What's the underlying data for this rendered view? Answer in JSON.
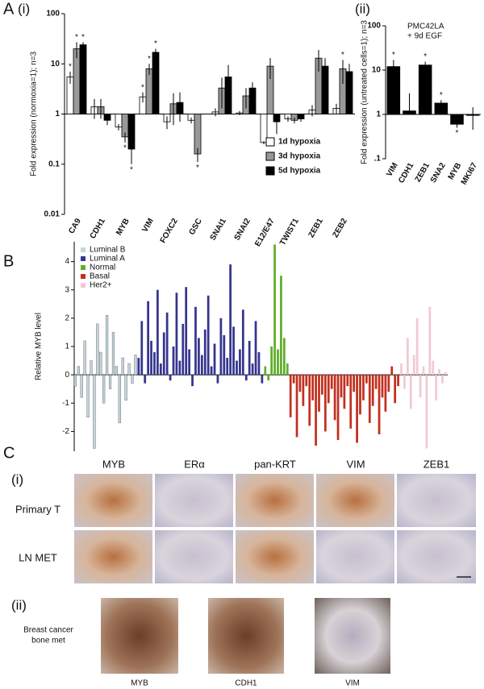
{
  "chart_data": [
    {
      "type": "bar",
      "panel_label": "A",
      "sub_label": "(i)",
      "log_scale": true,
      "ylabel": "Fold expression (normoxia=1); n=3",
      "categories": [
        "CA9",
        "CDH1",
        "MYB",
        "VIM",
        "FOXC2",
        "GSC",
        "SNAI1",
        "SNAI2",
        "E12/E47",
        "TWIST1",
        "ZEB1",
        "ZEB2"
      ],
      "series": [
        {
          "name": "1d hypoxia",
          "color": "#ffffff",
          "values": [
            5.5,
            1.4,
            0.55,
            2.2,
            0.7,
            0.75,
            1.1,
            1.05,
            0.27,
            0.8,
            1.2,
            1.3
          ],
          "errors": [
            1.5,
            0.6,
            0.08,
            0.5,
            0.2,
            0.1,
            0.2,
            0.1,
            0.02,
            0.1,
            0.3,
            0.3
          ],
          "marks": [
            "*",
            null,
            null,
            "*",
            null,
            null,
            null,
            null,
            null,
            null,
            null,
            null
          ]
        },
        {
          "name": "3d hypoxia",
          "color": "#999999",
          "values": [
            20,
            1.4,
            0.35,
            8,
            1.6,
            0.16,
            3.3,
            2.3,
            9,
            0.75,
            13,
            8
          ],
          "errors": [
            7,
            0.6,
            0.08,
            2,
            1,
            0.05,
            2,
            1,
            4,
            0.1,
            6,
            4
          ],
          "marks": [
            "*",
            null,
            "*",
            "*",
            null,
            "*",
            null,
            null,
            null,
            null,
            null,
            "*"
          ]
        },
        {
          "name": "5d hypoxia",
          "color": "#000000",
          "values": [
            24,
            0.75,
            0.2,
            17,
            1.7,
            null,
            5.5,
            3.3,
            0.7,
            0.8,
            9,
            7
          ],
          "errors": [
            3,
            0.15,
            0.1,
            3,
            1,
            null,
            4,
            1,
            0.3,
            0.1,
            4,
            3
          ],
          "marks": [
            "*",
            null,
            "*",
            "*",
            null,
            null,
            null,
            null,
            null,
            null,
            null,
            null
          ]
        }
      ],
      "ylim": [
        0.01,
        100
      ],
      "yticks": [
        0.01,
        0.1,
        1,
        10,
        100
      ],
      "legend": "lower right"
    },
    {
      "type": "bar",
      "sub_label": "(ii)",
      "log_scale": true,
      "ylabel": "Fold expression (untreated cells=1); n=3",
      "annotation": [
        "PMC42LA",
        "+ 9d EGF"
      ],
      "categories": [
        "VIM",
        "CDH1",
        "ZEB1",
        "SNA2",
        "MYB",
        "MKI67"
      ],
      "series": [
        {
          "color": "#000000",
          "values": [
            12,
            1.2,
            13,
            1.8,
            0.6,
            0.95
          ],
          "errors": [
            5,
            1.8,
            2.5,
            0.3,
            0.1,
            0.5
          ],
          "marks": [
            "*",
            null,
            "*",
            "*",
            "*",
            null
          ]
        }
      ],
      "ylim": [
        0.1,
        100
      ],
      "yticks": [
        {
          "value": 0.1,
          "label": ".1"
        },
        1,
        10,
        100
      ]
    },
    {
      "type": "bar",
      "panel_label": "B",
      "ylabel": "Relative MYB level",
      "series": [
        {
          "name": "Luminal B",
          "color": "#c3d6d6",
          "values": [
            -0.4,
            0.3,
            -0.8,
            1.2,
            -1.5,
            0.5,
            -2.6,
            1.8,
            0.8,
            -1.0,
            2.1,
            -0.5,
            1.5,
            0.3,
            -1.7,
            0.6,
            -0.9,
            0.4,
            -0.3,
            0.7
          ]
        },
        {
          "name": "Luminal A",
          "color": "#35358f",
          "values": [
            0.6,
            1.9,
            -0.3,
            2.6,
            1.2,
            0.8,
            3.0,
            0.4,
            1.5,
            2.2,
            -0.2,
            1.0,
            2.9,
            0.5,
            1.8,
            3.1,
            0.9,
            -0.4,
            2.4,
            1.3,
            0.7,
            1.6,
            2.8,
            0.3,
            1.1,
            -0.3,
            2.0,
            1.4,
            0.6,
            3.9,
            1.7,
            0.5,
            0.9,
            2.3,
            -0.2,
            1.2,
            0.4,
            1.9,
            0.8,
            -0.3
          ]
        },
        {
          "name": "Normal",
          "color": "#5fae2a",
          "values": [
            0.3,
            -0.2,
            1.0,
            4.6,
            0.9,
            3.5,
            1.3,
            0.4
          ]
        },
        {
          "name": "Basal",
          "color": "#c2301f",
          "values": [
            -1.5,
            -0.3,
            -2.2,
            -0.6,
            -1.1,
            -0.4,
            -1.8,
            -0.9,
            -2.5,
            -1.3,
            -0.7,
            -2.0,
            -1.0,
            -0.5,
            -1.6,
            -2.3,
            -0.8,
            -1.2,
            -0.4,
            -1.9,
            -0.6,
            -2.4,
            -1.4,
            -0.9,
            -0.3,
            -1.7,
            -1.1,
            -0.5,
            -2.1,
            -0.8,
            -1.3,
            -0.6,
            0.3,
            -1.0,
            -0.4
          ]
        },
        {
          "name": "Her2+",
          "color": "#f2c9d2",
          "values": [
            0.4,
            -0.5,
            1.3,
            -1.2,
            0.7,
            2.0,
            -0.8,
            0.3,
            -2.6,
            2.4,
            0.5,
            -0.9,
            0.2,
            -0.3,
            0.1
          ]
        }
      ],
      "ylim": [
        -2.7,
        4.7
      ],
      "yticks": [
        -2,
        -1,
        0,
        1,
        2,
        3,
        4
      ],
      "legend": "upper left"
    }
  ],
  "panel_c": {
    "label": "C",
    "part_i": {
      "label": "(i)",
      "columns": [
        "MYB",
        "ERα",
        "pan-KRT",
        "VIM",
        "ZEB1"
      ],
      "rows": [
        "Primary T",
        "LN MET"
      ]
    },
    "part_ii": {
      "label": "(ii)",
      "row_label": [
        "Breast cancer",
        "bone met"
      ],
      "images": [
        "MYB",
        "CDH1",
        "VIM"
      ]
    }
  }
}
